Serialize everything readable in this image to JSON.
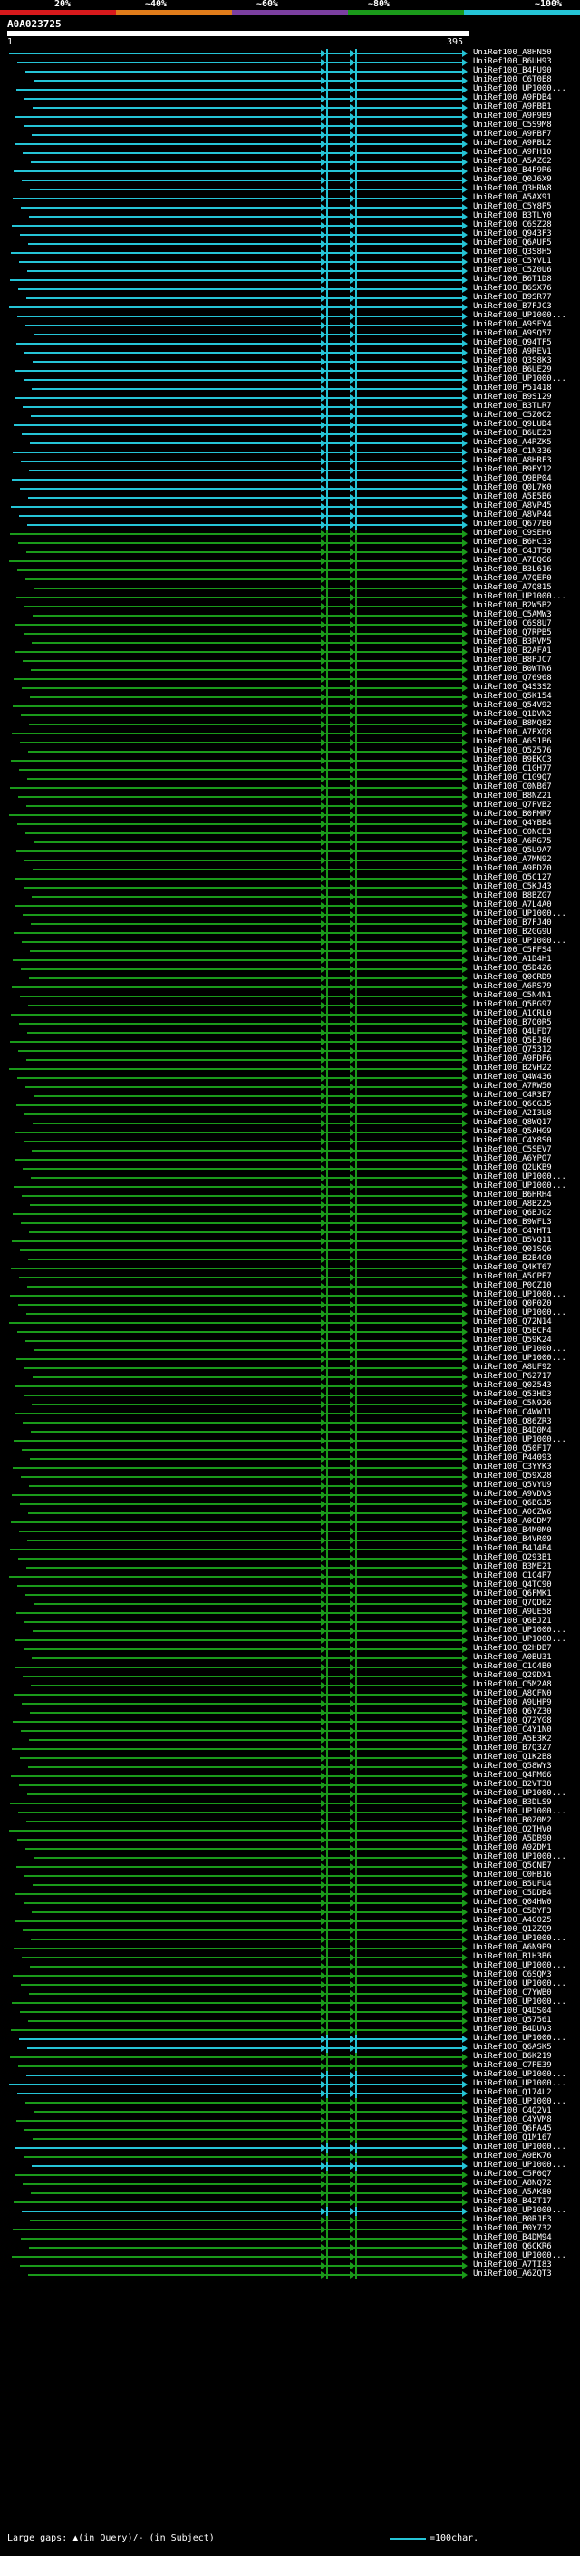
{
  "scale": {
    "labels": [
      "20%",
      "~40%",
      "~60%",
      "~80%",
      "~100%"
    ],
    "colors": [
      "#d7191c",
      "#e07c1a",
      "#7b3fa0",
      "#1a9a1a",
      "#25c4d6"
    ]
  },
  "query": {
    "title": "A0A023725",
    "start": "1",
    "end": "395"
  },
  "hits": [
    {
      "label": "UniRef100_A8HN50",
      "color": "#25c4d6"
    },
    {
      "label": "UniRef100_B6UH93",
      "color": "#25c4d6"
    },
    {
      "label": "UniRef100_B4FU90",
      "color": "#25c4d6"
    },
    {
      "label": "UniRef100_C6T0E8",
      "color": "#25c4d6"
    },
    {
      "label": "UniRef100_UP1000...",
      "color": "#25c4d6"
    },
    {
      "label": "UniRef100_A9PDB4",
      "color": "#25c4d6"
    },
    {
      "label": "UniRef100_A9PBB1",
      "color": "#25c4d6"
    },
    {
      "label": "UniRef100_A9P9B9",
      "color": "#25c4d6"
    },
    {
      "label": "UniRef100_C5S9M8",
      "color": "#25c4d6"
    },
    {
      "label": "UniRef100_A9PBF7",
      "color": "#25c4d6"
    },
    {
      "label": "UniRef100_A9PBL2",
      "color": "#25c4d6"
    },
    {
      "label": "UniRef100_A9PH10",
      "color": "#25c4d6"
    },
    {
      "label": "UniRef100_A5AZG2",
      "color": "#25c4d6"
    },
    {
      "label": "UniRef100_B4F9R6",
      "color": "#25c4d6"
    },
    {
      "label": "UniRef100_Q0J6X9",
      "color": "#25c4d6"
    },
    {
      "label": "UniRef100_Q3HRW8",
      "color": "#25c4d6"
    },
    {
      "label": "UniRef100_A5AX91",
      "color": "#25c4d6"
    },
    {
      "label": "UniRef100_C5Y8P5",
      "color": "#25c4d6"
    },
    {
      "label": "UniRef100_B3TLY0",
      "color": "#25c4d6"
    },
    {
      "label": "UniRef100_C6SZ28",
      "color": "#25c4d6"
    },
    {
      "label": "UniRef100_Q943F3",
      "color": "#25c4d6"
    },
    {
      "label": "UniRef100_Q6AUF5",
      "color": "#25c4d6"
    },
    {
      "label": "UniRef100_Q3S8H5",
      "color": "#25c4d6"
    },
    {
      "label": "UniRef100_C5YVL1",
      "color": "#25c4d6"
    },
    {
      "label": "UniRef100_C5Z0U6",
      "color": "#25c4d6"
    },
    {
      "label": "UniRef100_B6T1D8",
      "color": "#25c4d6"
    },
    {
      "label": "UniRef100_B6SX76",
      "color": "#25c4d6"
    },
    {
      "label": "UniRef100_B9SR77",
      "color": "#25c4d6"
    },
    {
      "label": "UniRef100_B7FJC3",
      "color": "#25c4d6"
    },
    {
      "label": "UniRef100_UP1000...",
      "color": "#25c4d6"
    },
    {
      "label": "UniRef100_A9SFY4",
      "color": "#25c4d6"
    },
    {
      "label": "UniRef100_A9SQ57",
      "color": "#25c4d6"
    },
    {
      "label": "UniRef100_Q94TF5",
      "color": "#25c4d6"
    },
    {
      "label": "UniRef100_A9REV1",
      "color": "#25c4d6"
    },
    {
      "label": "UniRef100_Q3S8K3",
      "color": "#25c4d6"
    },
    {
      "label": "UniRef100_B6UE29",
      "color": "#25c4d6"
    },
    {
      "label": "UniRef100_UP1000...",
      "color": "#25c4d6"
    },
    {
      "label": "UniRef100_P51418",
      "color": "#25c4d6"
    },
    {
      "label": "UniRef100_B9S129",
      "color": "#25c4d6"
    },
    {
      "label": "UniRef100_B3TLR7",
      "color": "#25c4d6"
    },
    {
      "label": "UniRef100_C5Z0C2",
      "color": "#25c4d6"
    },
    {
      "label": "UniRef100_Q9LUD4",
      "color": "#25c4d6"
    },
    {
      "label": "UniRef100_B6UE23",
      "color": "#25c4d6"
    },
    {
      "label": "UniRef100_A4RZK5",
      "color": "#25c4d6"
    },
    {
      "label": "UniRef100_C1N336",
      "color": "#25c4d6"
    },
    {
      "label": "UniRef100_A8HRF3",
      "color": "#25c4d6"
    },
    {
      "label": "UniRef100_B9EY12",
      "color": "#25c4d6"
    },
    {
      "label": "UniRef100_Q9BP04",
      "color": "#25c4d6"
    },
    {
      "label": "UniRef100_Q0L7K0",
      "color": "#25c4d6"
    },
    {
      "label": "UniRef100_A5E5B6",
      "color": "#25c4d6"
    },
    {
      "label": "UniRef100_A8VP45",
      "color": "#25c4d6"
    },
    {
      "label": "UniRef100_A8VP44",
      "color": "#25c4d6"
    },
    {
      "label": "UniRef100_Q677B0",
      "color": "#25c4d6"
    },
    {
      "label": "UniRef100_C9SEH6",
      "color": "#1a9a1a"
    },
    {
      "label": "UniRef100_B6HC33",
      "color": "#1a9a1a"
    },
    {
      "label": "UniRef100_C4JT50",
      "color": "#1a9a1a"
    },
    {
      "label": "UniRef100_A7EQG6",
      "color": "#1a9a1a"
    },
    {
      "label": "UniRef100_B3L616",
      "color": "#1a9a1a"
    },
    {
      "label": "UniRef100_A7QEP0",
      "color": "#1a9a1a"
    },
    {
      "label": "UniRef100_A7Q815",
      "color": "#1a9a1a"
    },
    {
      "label": "UniRef100_UP1000...",
      "color": "#1a9a1a"
    },
    {
      "label": "UniRef100_B2W5B2",
      "color": "#1a9a1a"
    },
    {
      "label": "UniRef100_C5AMW3",
      "color": "#1a9a1a"
    },
    {
      "label": "UniRef100_C6S8U7",
      "color": "#1a9a1a"
    },
    {
      "label": "UniRef100_Q7RPB5",
      "color": "#1a9a1a"
    },
    {
      "label": "UniRef100_B3RVM5",
      "color": "#1a9a1a"
    },
    {
      "label": "UniRef100_B2AFA1",
      "color": "#1a9a1a"
    },
    {
      "label": "UniRef100_B8PJC7",
      "color": "#1a9a1a"
    },
    {
      "label": "UniRef100_B0WTN6",
      "color": "#1a9a1a"
    },
    {
      "label": "UniRef100_Q76968",
      "color": "#1a9a1a"
    },
    {
      "label": "UniRef100_Q4S3S2",
      "color": "#1a9a1a"
    },
    {
      "label": "UniRef100_Q5K154",
      "color": "#1a9a1a"
    },
    {
      "label": "UniRef100_Q54V92",
      "color": "#1a9a1a"
    },
    {
      "label": "UniRef100_Q1DVN2",
      "color": "#1a9a1a"
    },
    {
      "label": "UniRef100_B8MQ82",
      "color": "#1a9a1a"
    },
    {
      "label": "UniRef100_A7EXQ8",
      "color": "#1a9a1a"
    },
    {
      "label": "UniRef100_A6S1B6",
      "color": "#1a9a1a"
    },
    {
      "label": "UniRef100_Q5Z576",
      "color": "#1a9a1a"
    },
    {
      "label": "UniRef100_B9EKC3",
      "color": "#1a9a1a"
    },
    {
      "label": "UniRef100_C1GH77",
      "color": "#1a9a1a"
    },
    {
      "label": "UniRef100_C1G9Q7",
      "color": "#1a9a1a"
    },
    {
      "label": "UniRef100_C0NB67",
      "color": "#1a9a1a"
    },
    {
      "label": "UniRef100_B8NZ21",
      "color": "#1a9a1a"
    },
    {
      "label": "UniRef100_Q7PVB2",
      "color": "#1a9a1a"
    },
    {
      "label": "UniRef100_B0FMR7",
      "color": "#1a9a1a"
    },
    {
      "label": "UniRef100_Q4YBB4",
      "color": "#1a9a1a"
    },
    {
      "label": "UniRef100_C0NCE3",
      "color": "#1a9a1a"
    },
    {
      "label": "UniRef100_A6RG75",
      "color": "#1a9a1a"
    },
    {
      "label": "UniRef100_Q5U9A7",
      "color": "#1a9a1a"
    },
    {
      "label": "UniRef100_A7MN92",
      "color": "#1a9a1a"
    },
    {
      "label": "UniRef100_A9PDZ0",
      "color": "#1a9a1a"
    },
    {
      "label": "UniRef100_Q5C127",
      "color": "#1a9a1a"
    },
    {
      "label": "UniRef100_C5KJ43",
      "color": "#1a9a1a"
    },
    {
      "label": "UniRef100_B8BZG7",
      "color": "#1a9a1a"
    },
    {
      "label": "UniRef100_A7L4A0",
      "color": "#1a9a1a"
    },
    {
      "label": "UniRef100_UP1000...",
      "color": "#1a9a1a"
    },
    {
      "label": "UniRef100_B7FJ40",
      "color": "#1a9a1a"
    },
    {
      "label": "UniRef100_B2GG9U",
      "color": "#1a9a1a"
    },
    {
      "label": "UniRef100_UP1000...",
      "color": "#1a9a1a"
    },
    {
      "label": "UniRef100_C5FFS4",
      "color": "#1a9a1a"
    },
    {
      "label": "UniRef100_A1D4H1",
      "color": "#1a9a1a"
    },
    {
      "label": "UniRef100_Q5D426",
      "color": "#1a9a1a"
    },
    {
      "label": "UniRef100_Q0CRD9",
      "color": "#1a9a1a"
    },
    {
      "label": "UniRef100_A6RS79",
      "color": "#1a9a1a"
    },
    {
      "label": "UniRef100_C5N4N1",
      "color": "#1a9a1a"
    },
    {
      "label": "UniRef100_Q5BG97",
      "color": "#1a9a1a"
    },
    {
      "label": "UniRef100_A1CRL0",
      "color": "#1a9a1a"
    },
    {
      "label": "UniRef100_B7Q0R5",
      "color": "#1a9a1a"
    },
    {
      "label": "UniRef100_Q4UFD7",
      "color": "#1a9a1a"
    },
    {
      "label": "UniRef100_Q5EJ86",
      "color": "#1a9a1a"
    },
    {
      "label": "UniRef100_Q75312",
      "color": "#1a9a1a"
    },
    {
      "label": "UniRef100_A9PDP6",
      "color": "#1a9a1a"
    },
    {
      "label": "UniRef100_B2VH22",
      "color": "#1a9a1a"
    },
    {
      "label": "UniRef100_Q4W436",
      "color": "#1a9a1a"
    },
    {
      "label": "UniRef100_A7RW50",
      "color": "#1a9a1a"
    },
    {
      "label": "UniRef100_C4R3E7",
      "color": "#1a9a1a"
    },
    {
      "label": "UniRef100_Q6CGJ5",
      "color": "#1a9a1a"
    },
    {
      "label": "UniRef100_A2I3U8",
      "color": "#1a9a1a"
    },
    {
      "label": "UniRef100_Q8WQ17",
      "color": "#1a9a1a"
    },
    {
      "label": "UniRef100_Q5AHG9",
      "color": "#1a9a1a"
    },
    {
      "label": "UniRef100_C4Y8S0",
      "color": "#1a9a1a"
    },
    {
      "label": "UniRef100_C5SEV7",
      "color": "#1a9a1a"
    },
    {
      "label": "UniRef100_A6YPQ7",
      "color": "#1a9a1a"
    },
    {
      "label": "UniRef100_Q2UKB9",
      "color": "#1a9a1a"
    },
    {
      "label": "UniRef100_UP1000...",
      "color": "#1a9a1a"
    },
    {
      "label": "UniRef100_UP1000...",
      "color": "#1a9a1a"
    },
    {
      "label": "UniRef100_B6HRH4",
      "color": "#1a9a1a"
    },
    {
      "label": "UniRef100_A8B2Z5",
      "color": "#1a9a1a"
    },
    {
      "label": "UniRef100_Q6BJG2",
      "color": "#1a9a1a"
    },
    {
      "label": "UniRef100_B9WFL3",
      "color": "#1a9a1a"
    },
    {
      "label": "UniRef100_C4YHT1",
      "color": "#1a9a1a"
    },
    {
      "label": "UniRef100_B5VQ11",
      "color": "#1a9a1a"
    },
    {
      "label": "UniRef100_Q01SQ6",
      "color": "#1a9a1a"
    },
    {
      "label": "UniRef100_B2B4C0",
      "color": "#1a9a1a"
    },
    {
      "label": "UniRef100_Q4KT67",
      "color": "#1a9a1a"
    },
    {
      "label": "UniRef100_A5CPE7",
      "color": "#1a9a1a"
    },
    {
      "label": "UniRef100_P0CZ10",
      "color": "#1a9a1a"
    },
    {
      "label": "UniRef100_UP1000...",
      "color": "#1a9a1a"
    },
    {
      "label": "UniRef100_Q0P0Z0",
      "color": "#1a9a1a"
    },
    {
      "label": "UniRef100_UP1000...",
      "color": "#1a9a1a"
    },
    {
      "label": "UniRef100_Q72N14",
      "color": "#1a9a1a"
    },
    {
      "label": "UniRef100_Q5BCF4",
      "color": "#1a9a1a"
    },
    {
      "label": "UniRef100_Q59K24",
      "color": "#1a9a1a"
    },
    {
      "label": "UniRef100_UP1000...",
      "color": "#1a9a1a"
    },
    {
      "label": "UniRef100_UP1000...",
      "color": "#1a9a1a"
    },
    {
      "label": "UniRef100_A8UF92",
      "color": "#1a9a1a"
    },
    {
      "label": "UniRef100_P62717",
      "color": "#1a9a1a"
    },
    {
      "label": "UniRef100_Q0Z543",
      "color": "#1a9a1a"
    },
    {
      "label": "UniRef100_Q53HD3",
      "color": "#1a9a1a"
    },
    {
      "label": "UniRef100_C5N926",
      "color": "#1a9a1a"
    },
    {
      "label": "UniRef100_C4WWJ1",
      "color": "#1a9a1a"
    },
    {
      "label": "UniRef100_Q86ZR3",
      "color": "#1a9a1a"
    },
    {
      "label": "UniRef100_B4D0M4",
      "color": "#1a9a1a"
    },
    {
      "label": "UniRef100_UP1000...",
      "color": "#1a9a1a"
    },
    {
      "label": "UniRef100_Q50F17",
      "color": "#1a9a1a"
    },
    {
      "label": "UniRef100_P44093",
      "color": "#1a9a1a"
    },
    {
      "label": "UniRef100_C3YYK3",
      "color": "#1a9a1a"
    },
    {
      "label": "UniRef100_Q59X28",
      "color": "#1a9a1a"
    },
    {
      "label": "UniRef100_Q5VYU9",
      "color": "#1a9a1a"
    },
    {
      "label": "UniRef100_A9VDV3",
      "color": "#1a9a1a"
    },
    {
      "label": "UniRef100_Q6BGJ5",
      "color": "#1a9a1a"
    },
    {
      "label": "UniRef100_A0CZW6",
      "color": "#1a9a1a"
    },
    {
      "label": "UniRef100_A0CDM7",
      "color": "#1a9a1a"
    },
    {
      "label": "UniRef100_B4M0M0",
      "color": "#1a9a1a"
    },
    {
      "label": "UniRef100_B4VR09",
      "color": "#1a9a1a"
    },
    {
      "label": "UniRef100_B4J4B4",
      "color": "#1a9a1a"
    },
    {
      "label": "UniRef100_Q293B1",
      "color": "#1a9a1a"
    },
    {
      "label": "UniRef100_B3ME21",
      "color": "#1a9a1a"
    },
    {
      "label": "UniRef100_C1C4P7",
      "color": "#1a9a1a"
    },
    {
      "label": "UniRef100_Q4TC90",
      "color": "#1a9a1a"
    },
    {
      "label": "UniRef100_Q6FMK1",
      "color": "#1a9a1a"
    },
    {
      "label": "UniRef100_Q7QD62",
      "color": "#1a9a1a"
    },
    {
      "label": "UniRef100_A9UE58",
      "color": "#1a9a1a"
    },
    {
      "label": "UniRef100_Q6BJZ1",
      "color": "#1a9a1a"
    },
    {
      "label": "UniRef100_UP1000...",
      "color": "#1a9a1a"
    },
    {
      "label": "UniRef100_UP1000...",
      "color": "#1a9a1a"
    },
    {
      "label": "UniRef100_Q2HDB7",
      "color": "#1a9a1a"
    },
    {
      "label": "UniRef100_A0BU31",
      "color": "#1a9a1a"
    },
    {
      "label": "UniRef100_C1C4B0",
      "color": "#1a9a1a"
    },
    {
      "label": "UniRef100_Q29DX1",
      "color": "#1a9a1a"
    },
    {
      "label": "UniRef100_C5M2A8",
      "color": "#1a9a1a"
    },
    {
      "label": "UniRef100_A8CFN0",
      "color": "#1a9a1a"
    },
    {
      "label": "UniRef100_A9UHP9",
      "color": "#1a9a1a"
    },
    {
      "label": "UniRef100_Q6YZ30",
      "color": "#1a9a1a"
    },
    {
      "label": "UniRef100_Q72YG8",
      "color": "#1a9a1a"
    },
    {
      "label": "UniRef100_C4Y1N0",
      "color": "#1a9a1a"
    },
    {
      "label": "UniRef100_A5E3K2",
      "color": "#1a9a1a"
    },
    {
      "label": "UniRef100_B7Q3Z7",
      "color": "#1a9a1a"
    },
    {
      "label": "UniRef100_Q1K2B8",
      "color": "#1a9a1a"
    },
    {
      "label": "UniRef100_Q58WY3",
      "color": "#1a9a1a"
    },
    {
      "label": "UniRef100_Q4PM66",
      "color": "#1a9a1a"
    },
    {
      "label": "UniRef100_B2VT38",
      "color": "#1a9a1a"
    },
    {
      "label": "UniRef100_UP1000...",
      "color": "#1a9a1a"
    },
    {
      "label": "UniRef100_B3DLS9",
      "color": "#1a9a1a"
    },
    {
      "label": "UniRef100_UP1000...",
      "color": "#1a9a1a"
    },
    {
      "label": "UniRef100_B0Z0M2",
      "color": "#1a9a1a"
    },
    {
      "label": "UniRef100_Q2THV0",
      "color": "#1a9a1a"
    },
    {
      "label": "UniRef100_A5DB90",
      "color": "#1a9a1a"
    },
    {
      "label": "UniRef100_A9ZDM1",
      "color": "#1a9a1a"
    },
    {
      "label": "UniRef100_UP1000...",
      "color": "#1a9a1a"
    },
    {
      "label": "UniRef100_Q5CNE7",
      "color": "#1a9a1a"
    },
    {
      "label": "UniRef100_C0HB16",
      "color": "#1a9a1a"
    },
    {
      "label": "UniRef100_B5UFU4",
      "color": "#1a9a1a"
    },
    {
      "label": "UniRef100_C5DDB4",
      "color": "#1a9a1a"
    },
    {
      "label": "UniRef100_Q04HW0",
      "color": "#1a9a1a"
    },
    {
      "label": "UniRef100_C5DYF3",
      "color": "#1a9a1a"
    },
    {
      "label": "UniRef100_A4G025",
      "color": "#1a9a1a"
    },
    {
      "label": "UniRef100_Q1ZZQ9",
      "color": "#1a9a1a"
    },
    {
      "label": "UniRef100_UP1000...",
      "color": "#1a9a1a"
    },
    {
      "label": "UniRef100_A6N9P9",
      "color": "#1a9a1a"
    },
    {
      "label": "UniRef100_B1H3B6",
      "color": "#1a9a1a"
    },
    {
      "label": "UniRef100_UP1000...",
      "color": "#1a9a1a"
    },
    {
      "label": "UniRef100_C6SQM3",
      "color": "#1a9a1a"
    },
    {
      "label": "UniRef100_UP1000...",
      "color": "#1a9a1a"
    },
    {
      "label": "UniRef100_C7YWB0",
      "color": "#1a9a1a"
    },
    {
      "label": "UniRef100_UP1000...",
      "color": "#1a9a1a"
    },
    {
      "label": "UniRef100_Q4DS04",
      "color": "#1a9a1a"
    },
    {
      "label": "UniRef100_Q57561",
      "color": "#1a9a1a"
    },
    {
      "label": "UniRef100_B4DUV3",
      "color": "#1a9a1a"
    },
    {
      "label": "UniRef100_UP1000...",
      "color": "#25c4d6"
    },
    {
      "label": "UniRef100_Q6ASK5",
      "color": "#25c4d6"
    },
    {
      "label": "UniRef100_B6K219",
      "color": "#1a9a1a"
    },
    {
      "label": "UniRef100_C7PE39",
      "color": "#1a9a1a"
    },
    {
      "label": "UniRef100_UP1000...",
      "color": "#25c4d6"
    },
    {
      "label": "UniRef100_UP1000...",
      "color": "#25c4d6"
    },
    {
      "label": "UniRef100_Q174L2",
      "color": "#25c4d6"
    },
    {
      "label": "UniRef100_UP1000...",
      "color": "#1a9a1a"
    },
    {
      "label": "UniRef100_C4Q2V1",
      "color": "#1a9a1a"
    },
    {
      "label": "UniRef100_C4YVM8",
      "color": "#1a9a1a"
    },
    {
      "label": "UniRef100_Q6FA45",
      "color": "#1a9a1a"
    },
    {
      "label": "UniRef100_Q1M167",
      "color": "#1a9a1a"
    },
    {
      "label": "UniRef100_UP1000...",
      "color": "#25c4d6"
    },
    {
      "label": "UniRef100_A9BK76",
      "color": "#1a9a1a"
    },
    {
      "label": "UniRef100_UP1000...",
      "color": "#25c4d6"
    },
    {
      "label": "UniRef100_C5P0Q7",
      "color": "#1a9a1a"
    },
    {
      "label": "UniRef100_A8NQ72",
      "color": "#1a9a1a"
    },
    {
      "label": "UniRef100_A5AK80",
      "color": "#1a9a1a"
    },
    {
      "label": "UniRef100_B4ZT17",
      "color": "#1a9a1a"
    },
    {
      "label": "UniRef100_UP1000...",
      "color": "#25c4d6"
    },
    {
      "label": "UniRef100_B0RJF3",
      "color": "#1a9a1a"
    },
    {
      "label": "UniRef100_P0Y732",
      "color": "#1a9a1a"
    },
    {
      "label": "UniRef100_B4DM94",
      "color": "#1a9a1a"
    },
    {
      "label": "UniRef100_Q6CKR6",
      "color": "#1a9a1a"
    },
    {
      "label": "UniRef100_UP1000...",
      "color": "#1a9a1a"
    },
    {
      "label": "UniRef100_A7TI83",
      "color": "#1a9a1a"
    },
    {
      "label": "UniRef100_A6ZQT3",
      "color": "#1a9a1a"
    }
  ],
  "footer": {
    "gaps": "Large gaps: ▲(in Query)/- (in Subject)",
    "scale": "=100char."
  }
}
